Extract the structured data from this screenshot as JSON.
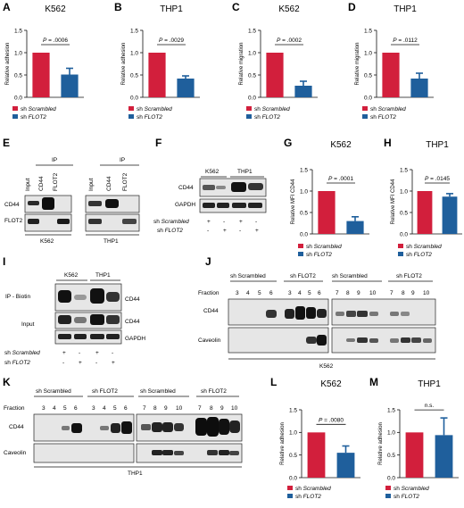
{
  "colors": {
    "scrambled": "#d21f3c",
    "flot2": "#1f5f9c",
    "blot_bg": "#e4e4e4",
    "band": "#1a1a1a"
  },
  "legend": {
    "sh": "sh ",
    "scrambled": "Scrambled",
    "flot2": "FLOT2"
  },
  "panels": {
    "A": {
      "letter": "A",
      "title": "K562",
      "ylabel": "Relative adhesion",
      "pvalue": "P = .0006"
    },
    "B": {
      "letter": "B",
      "title": "THP1",
      "ylabel": "Relative adhesion",
      "pvalue": "P = .0029"
    },
    "C": {
      "letter": "C",
      "title": "K562",
      "ylabel": "Relative migration",
      "pvalue": "P = .0002"
    },
    "D": {
      "letter": "D",
      "title": "THP1",
      "ylabel": "Relative migration",
      "pvalue": "P = .0112"
    },
    "E": {
      "letter": "E",
      "ip": "IP",
      "lanes": [
        "Input",
        "CD44",
        "FLOT2"
      ],
      "rows": [
        "CD44",
        "FLOT2"
      ],
      "cells": [
        "K562",
        "THP1"
      ]
    },
    "F": {
      "letter": "F",
      "cells": [
        "K562",
        "THP1"
      ],
      "rows": [
        "CD44",
        "GAPDH"
      ],
      "sh_scr": "sh Scrambled",
      "sh_flot": "sh FLOT2",
      "signs_scr": [
        "+",
        "-",
        "+",
        "-"
      ],
      "signs_flot": [
        "-",
        "+",
        "-",
        "+"
      ]
    },
    "G": {
      "letter": "G",
      "title": "K562",
      "ylabel": "Relative MFI CD44",
      "pvalue": "P = .0001"
    },
    "H": {
      "letter": "H",
      "title": "THP1",
      "ylabel": "Relative MFI CD44",
      "pvalue": "P = .0145"
    },
    "I": {
      "letter": "I",
      "cells": [
        "K562",
        "THP1"
      ],
      "ip_label": "IP - Biotin",
      "input_label": "Input",
      "rows": [
        "CD44",
        "CD44",
        "GAPDH"
      ],
      "sh_scr": "sh Scrambled",
      "sh_flot": "sh FLOT2",
      "signs_scr": [
        "+",
        "-",
        "+",
        "-"
      ],
      "signs_flot": [
        "-",
        "+",
        "-",
        "+"
      ]
    },
    "J": {
      "letter": "J",
      "fraction": "Fraction",
      "groups": [
        "sh Scrambled",
        "sh FLOT2",
        "sh Scrambled",
        "sh FLOT2"
      ],
      "fractions_left": [
        "3",
        "4",
        "5",
        "6"
      ],
      "fractions_right": [
        "7",
        "8",
        "9",
        "10"
      ],
      "rows": [
        "CD44",
        "Caveolin"
      ],
      "cell": "K562"
    },
    "K": {
      "letter": "K",
      "fraction": "Fraction",
      "groups": [
        "sh Scrambled",
        "sh FLOT2",
        "sh Scrambled",
        "sh FLOT2"
      ],
      "fractions_left": [
        "3",
        "4",
        "5",
        "6"
      ],
      "fractions_right": [
        "7",
        "8",
        "9",
        "10"
      ],
      "rows": [
        "CD44",
        "Caveolin"
      ],
      "cell": "THP1"
    },
    "L": {
      "letter": "L",
      "title": "K562",
      "ylabel": "Relative adhesion",
      "pvalue": "P = .0080"
    },
    "M": {
      "letter": "M",
      "title": "THP1",
      "ylabel": "Relative adhesion",
      "pvalue": "n.s."
    }
  },
  "chart_data": [
    {
      "panel": "A",
      "type": "bar",
      "title": "K562",
      "ylabel": "Relative adhesion",
      "categories": [
        "sh Scrambled",
        "sh FLOT2"
      ],
      "values": [
        1.0,
        0.51
      ],
      "errors": [
        0,
        0.14
      ],
      "ylim": [
        0,
        1.5
      ],
      "yticks": [
        "0.0",
        "0.5",
        "1.0",
        "1.5"
      ],
      "annotation": "P = .0006"
    },
    {
      "panel": "B",
      "type": "bar",
      "title": "THP1",
      "ylabel": "Relative adhesion",
      "categories": [
        "sh Scrambled",
        "sh FLOT2"
      ],
      "values": [
        1.0,
        0.42
      ],
      "errors": [
        0,
        0.06
      ],
      "ylim": [
        0,
        1.5
      ],
      "yticks": [
        "0.0",
        "0.5",
        "1.0",
        "1.5"
      ],
      "annotation": "P = .0029"
    },
    {
      "panel": "C",
      "type": "bar",
      "title": "K562",
      "ylabel": "Relative migration",
      "categories": [
        "sh Scrambled",
        "sh FLOT2"
      ],
      "values": [
        1.0,
        0.26
      ],
      "errors": [
        0,
        0.1
      ],
      "ylim": [
        0,
        1.5
      ],
      "yticks": [
        "0.0",
        "0.5",
        "1.0",
        "1.5"
      ],
      "annotation": "P = .0002"
    },
    {
      "panel": "D",
      "type": "bar",
      "title": "THP1",
      "ylabel": "Relative migration",
      "categories": [
        "sh Scrambled",
        "sh FLOT2"
      ],
      "values": [
        1.0,
        0.42
      ],
      "errors": [
        0,
        0.12
      ],
      "ylim": [
        0,
        1.5
      ],
      "yticks": [
        "0.0",
        "0.5",
        "1.0",
        "1.5"
      ],
      "annotation": "P = .0112"
    },
    {
      "panel": "G",
      "type": "bar",
      "title": "K562",
      "ylabel": "Relative MFI CD44",
      "categories": [
        "sh Scrambled",
        "sh FLOT2"
      ],
      "values": [
        1.0,
        0.3
      ],
      "errors": [
        0,
        0.1
      ],
      "ylim": [
        0,
        1.5
      ],
      "yticks": [
        "0.0",
        "0.5",
        "1.0",
        "1.5"
      ],
      "annotation": "P = .0001"
    },
    {
      "panel": "H",
      "type": "bar",
      "title": "THP1",
      "ylabel": "Relative MFI CD44",
      "categories": [
        "sh Scrambled",
        "sh FLOT2"
      ],
      "values": [
        1.0,
        0.87
      ],
      "errors": [
        0,
        0.07
      ],
      "ylim": [
        0,
        1.5
      ],
      "yticks": [
        "0.0",
        "0.5",
        "1.0",
        "1.5"
      ],
      "annotation": "P = .0145"
    },
    {
      "panel": "L",
      "type": "bar",
      "title": "K562",
      "ylabel": "Relative adhesion",
      "categories": [
        "sh Scrambled",
        "sh FLOT2"
      ],
      "values": [
        1.0,
        0.55
      ],
      "errors": [
        0,
        0.15
      ],
      "ylim": [
        0,
        1.5
      ],
      "yticks": [
        "0.0",
        "0.5",
        "1.0",
        "1.5"
      ],
      "annotation": "P = .0080"
    },
    {
      "panel": "M",
      "type": "bar",
      "title": "THP1",
      "ylabel": "Relative adhesion",
      "categories": [
        "sh Scrambled",
        "sh FLOT2"
      ],
      "values": [
        1.0,
        0.94
      ],
      "errors": [
        0,
        0.38
      ],
      "ylim": [
        0,
        1.5
      ],
      "yticks": [
        "0.0",
        "0.5",
        "1.0",
        "1.5"
      ],
      "annotation": "n.s."
    }
  ]
}
